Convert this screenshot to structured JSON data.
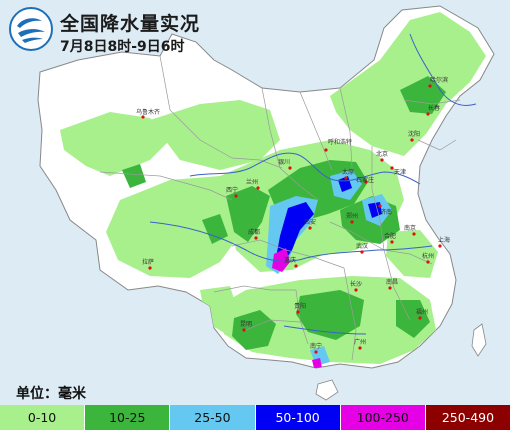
{
  "header": {
    "title": "全国降水量实况",
    "subtitle": "7月8日8时-9日6时"
  },
  "unit_label": "单位：毫米",
  "legend": [
    {
      "label": "0-10",
      "color": "#a8f08c"
    },
    {
      "label": "10-25",
      "color": "#3cb53c"
    },
    {
      "label": "25-50",
      "color": "#64c8f0"
    },
    {
      "label": "50-100",
      "color": "#0000f5"
    },
    {
      "label": "100-250",
      "color": "#e600e6"
    },
    {
      "label": "250-490",
      "color": "#8c0000"
    }
  ],
  "map": {
    "land_color": "#ffffff",
    "sea_color": "#dcebf4",
    "border_color": "#8a8a8a",
    "river_color": "#3a62c8",
    "city_labels": [
      "乌鲁木齐",
      "拉萨",
      "西宁",
      "兰州",
      "银川",
      "呼和浩特",
      "太原",
      "北京",
      "天津",
      "石家庄",
      "济南",
      "郑州",
      "西安",
      "成都",
      "重庆",
      "武汉",
      "合肥",
      "南京",
      "上海",
      "杭州",
      "长沙",
      "南昌",
      "福州",
      "贵阳",
      "昆明",
      "南宁",
      "广州",
      "哈尔滨",
      "长春",
      "沈阳"
    ]
  }
}
